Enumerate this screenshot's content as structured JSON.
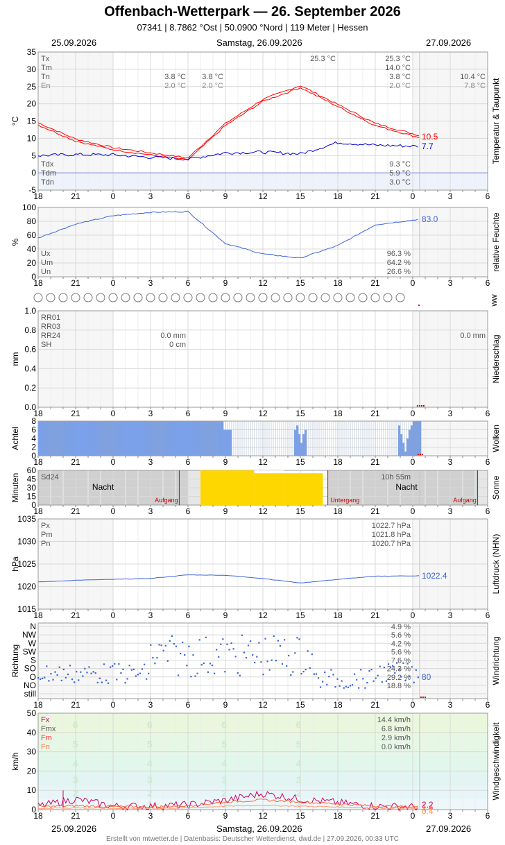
{
  "header": {
    "title": "Offenbach-Wetterpark  —  26. September 2026",
    "subtitle": "07341  |  8.7862 °Ost  |  50.0900 °Nord  |  119 Meter  |  Hessen"
  },
  "dates": {
    "prev": "25.09.2026",
    "curr": "Samstag, 26.09.2026",
    "next": "27.09.2026"
  },
  "footer": "Erstellt von mtwetter.de | Datenbasis: Deutscher Wetterdienst, dwd.de | 27.09.2026, 00:33 UTC",
  "hour_ticks": [
    "18",
    "21",
    "0",
    "3",
    "6",
    "9",
    "12",
    "15",
    "18",
    "21",
    "0",
    "3",
    "6"
  ],
  "colors": {
    "temp": "#ff0000",
    "dew": "#0000cc",
    "hum": "#3a63d8",
    "cloud": "#7aa0e8",
    "sun": "#ffd700",
    "night": "#c8c8c8",
    "wind_fx": "#cc0066",
    "wind_fm": "#ff6633"
  },
  "temp": {
    "ylabel": "°C",
    "side": "Temperatur & Taupunkt",
    "ylim": [
      -5,
      35
    ],
    "yticks": [
      "35",
      "30",
      "25",
      "20",
      "15",
      "10",
      "5",
      "0",
      "-5"
    ],
    "rows": [
      {
        "k": "Tx",
        "c1": "",
        "c2": "",
        "mid": "25.3 °C",
        "v": "25.3 °C",
        "n": ""
      },
      {
        "k": "Tm",
        "c1": "",
        "c2": "",
        "mid": "",
        "v": "14.0 °C",
        "n": ""
      },
      {
        "k": "Tn",
        "c1": "3.8 °C",
        "c2": "3.8 °C",
        "mid": "",
        "v": "3.8 °C",
        "n": "10.4 °C"
      },
      {
        "k": "En",
        "c1": "2.0 °C",
        "c2": "2.0 °C",
        "mid": "",
        "v": "2.0 °C",
        "n": "7.8 °C"
      }
    ],
    "dew_rows": [
      {
        "k": "Tdx",
        "v": "9.3 °C"
      },
      {
        "k": "Tdm",
        "v": "5.9 °C"
      },
      {
        "k": "Tdn",
        "v": "3.0 °C"
      }
    ],
    "last_t": "10.5",
    "last_td": "7.7"
  },
  "hum": {
    "ylabel": "%",
    "side": "relative Feuchte",
    "ylim": [
      0,
      100
    ],
    "yticks": [
      "100",
      "80",
      "60",
      "40",
      "20",
      "0"
    ],
    "rows": [
      {
        "k": "Ux",
        "v": "96.3 %"
      },
      {
        "k": "Um",
        "v": "64.2 %"
      },
      {
        "k": "Un",
        "v": "26.6 %"
      }
    ],
    "last": "83.0"
  },
  "ww": {
    "side": "ww",
    "count": 30
  },
  "precip": {
    "ylabel": "mm",
    "side": "Niederschlag",
    "ylim": [
      0,
      1
    ],
    "yticks": [
      "1.0",
      "0.8",
      "0.6",
      "0.4",
      "0.2",
      "0.0"
    ],
    "rows": [
      {
        "k": "RR01",
        "v": ""
      },
      {
        "k": "RR03",
        "v": ""
      },
      {
        "k": "RR24",
        "v": "0.0 mm"
      },
      {
        "k": "SH",
        "v": "0 cm"
      }
    ],
    "next": "0.0 mm"
  },
  "cloud": {
    "ylabel": "Achtel",
    "side": "Wolken",
    "ylim": [
      0,
      8
    ],
    "yticks": [
      "8",
      "6",
      "4",
      "2",
      "0"
    ]
  },
  "sun": {
    "ylabel": "Minuten",
    "side": "Sonne",
    "yticks": [
      "60",
      "45",
      "30",
      "15",
      "0"
    ],
    "sd24": "Sd24",
    "dur": "10h 55m",
    "night": "Nacht",
    "sunrise": "Aufgang",
    "sunset": "Untergang"
  },
  "press": {
    "ylabel": "hPa",
    "side": "Luftdruck (NHN)",
    "ylim": [
      1015,
      1035
    ],
    "yticks": [
      "1035",
      "1030",
      "1025",
      "1020",
      "1015"
    ],
    "rows": [
      {
        "k": "Px",
        "v": "1022.7 hPa"
      },
      {
        "k": "Pm",
        "v": "1021.8 hPa"
      },
      {
        "k": "Pn",
        "v": "1020.7 hPa"
      }
    ],
    "last": "1022.4"
  },
  "wdir": {
    "ylabel": "Richtung",
    "side": "Windrichtung",
    "labels": [
      "N",
      "NW",
      "W",
      "SW",
      "S",
      "SO",
      "O",
      "NO",
      "still"
    ],
    "pcts": [
      "4.9 %",
      "5.6 %",
      "4.2 %",
      "5.6 %",
      "7.6 %",
      "24.3 %",
      "29.2 %",
      "18.8 %",
      ""
    ],
    "last": "80"
  },
  "wind": {
    "ylabel": "km/h",
    "side": "Windgeschwindigkeit",
    "ylim": [
      0,
      50
    ],
    "yticks": [
      "50",
      "40",
      "30",
      "20",
      "10",
      "0"
    ],
    "rows": [
      {
        "k": "Fx",
        "v": "14.4 km/h"
      },
      {
        "k": "Fmx",
        "v": "6.8 km/h"
      },
      {
        "k": "Fm",
        "v": "2.9 km/h"
      },
      {
        "k": "Fn",
        "v": "0.0 km/h"
      }
    ],
    "bft": [
      "6",
      "5",
      "4",
      "3",
      "2",
      "1"
    ],
    "last_fx": "2.2",
    "last_fm": "1.4",
    "last_fn": "0.4"
  },
  "chart_data": [
    {
      "type": "line",
      "title": "Temperatur & Taupunkt",
      "ylabel": "°C",
      "ylim": [
        -5,
        35
      ],
      "x": [
        "18",
        "21",
        "0",
        "3",
        "6",
        "9",
        "12",
        "15",
        "18",
        "21",
        "0"
      ],
      "series": [
        {
          "name": "Tx",
          "values": [
            14.2,
            9.5,
            7.0,
            5.5,
            4.0,
            14.0,
            21.0,
            25.0,
            19.5,
            14.0,
            10.5
          ]
        },
        {
          "name": "Tdx",
          "values": [
            5.0,
            5.3,
            5.2,
            4.5,
            4.0,
            5.8,
            6.0,
            5.5,
            8.8,
            8.0,
            7.7
          ]
        }
      ]
    },
    {
      "type": "line",
      "title": "relative Feuchte",
      "ylabel": "%",
      "ylim": [
        0,
        100
      ],
      "x": [
        "18",
        "21",
        "0",
        "3",
        "6",
        "9",
        "12",
        "15",
        "18",
        "21",
        "0"
      ],
      "series": [
        {
          "name": "Ux",
          "values": [
            56,
            76,
            88,
            93,
            94,
            48,
            33,
            27,
            45,
            75,
            83
          ]
        }
      ]
    },
    {
      "type": "bar",
      "title": "Niederschlag",
      "ylabel": "mm",
      "ylim": [
        0,
        1
      ],
      "x": [
        "18",
        "21",
        "0",
        "3",
        "6",
        "9",
        "12",
        "15",
        "18",
        "21",
        "0"
      ],
      "series": [
        {
          "name": "RR01",
          "values": [
            0,
            0,
            0,
            0,
            0,
            0,
            0,
            0,
            0,
            0,
            0
          ]
        }
      ]
    },
    {
      "type": "bar",
      "title": "Wolken",
      "ylabel": "Achtel",
      "ylim": [
        0,
        8
      ],
      "x": [
        "18",
        "21",
        "0",
        "3",
        "6",
        "9",
        "12",
        "15",
        "18",
        "21",
        "0"
      ],
      "series": [
        {
          "name": "N",
          "values": [
            8,
            8,
            8,
            8,
            8,
            0,
            0,
            0,
            0,
            0,
            6
          ]
        }
      ]
    },
    {
      "type": "line",
      "title": "Luftdruck (NHN)",
      "ylabel": "hPa",
      "ylim": [
        1015,
        1035
      ],
      "x": [
        "18",
        "21",
        "0",
        "3",
        "6",
        "9",
        "12",
        "15",
        "18",
        "21",
        "0"
      ],
      "series": [
        {
          "name": "P",
          "values": [
            1021.0,
            1021.4,
            1021.6,
            1021.8,
            1022.6,
            1022.5,
            1021.8,
            1020.8,
            1021.6,
            1022.3,
            1022.4
          ]
        }
      ]
    },
    {
      "type": "line",
      "title": "Windgeschwindigkeit",
      "ylabel": "km/h",
      "ylim": [
        0,
        50
      ],
      "x": [
        "18",
        "21",
        "0",
        "3",
        "6",
        "9",
        "12",
        "15",
        "18",
        "21",
        "0"
      ],
      "series": [
        {
          "name": "Fx",
          "values": [
            3,
            9,
            3,
            3,
            4,
            8,
            14,
            9,
            6,
            3,
            2.2
          ]
        },
        {
          "name": "Fm",
          "values": [
            1.5,
            2,
            1.5,
            1.5,
            2,
            4,
            5,
            4,
            3,
            1.8,
            1.4
          ]
        }
      ]
    }
  ]
}
